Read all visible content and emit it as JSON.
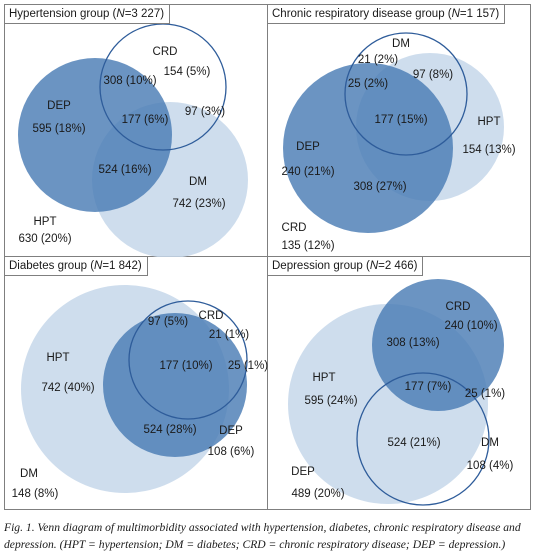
{
  "colors": {
    "dark_fill": "#4a7db5",
    "light_fill": "#c6d7ea",
    "outline": "#2e5c9a",
    "border": "#7f7f7f"
  },
  "panels": [
    {
      "title_prefix": "Hypertension group (",
      "title_n": "N",
      "title_suffix": "=3 227)",
      "labels": [
        "CRD",
        "154 (5%)",
        "308 (10%)",
        "DEP",
        "595 (18%)",
        "177 (6%)",
        "97 (3%)",
        "524 (16%)",
        "DM",
        "742 (23%)",
        "HPT",
        "630 (20%)"
      ]
    },
    {
      "title_prefix": "Chronic respiratory disease group (",
      "title_n": "N",
      "title_suffix": "=1 157)",
      "labels": [
        "DM",
        "21 (2%)",
        "97 (8%)",
        "25 (2%)",
        "177 (15%)",
        "HPT",
        "154 (13%)",
        "DEP",
        "240 (21%)",
        "308 (27%)",
        "CRD",
        "135 (12%)"
      ]
    },
    {
      "title_prefix": "Diabetes group (",
      "title_n": "N",
      "title_suffix": "=1 842)",
      "labels": [
        "CRD",
        "97 (5%)",
        "21 (1%)",
        "HPT",
        "742 (40%)",
        "177 (10%)",
        "25 (1%)",
        "524 (28%)",
        "DEP",
        "108 (6%)",
        "DM",
        "148 (8%)"
      ]
    },
    {
      "title_prefix": "Depression group (",
      "title_n": "N",
      "title_suffix": "=2 466)",
      "labels": [
        "CRD",
        "240 (10%)",
        "308 (13%)",
        "HPT",
        "595 (24%)",
        "177 (7%)",
        "25 (1%)",
        "524 (21%)",
        "DM",
        "108 (4%)",
        "DEP",
        "489 (20%)"
      ]
    }
  ],
  "caption": "Fig. 1. Venn diagram of multimorbidity associated with hypertension, diabetes, chronic respiratory disease and depression. (HPT = hypertension; DM = diabetes; CRD = chronic respiratory disease; DEP = depression.)"
}
